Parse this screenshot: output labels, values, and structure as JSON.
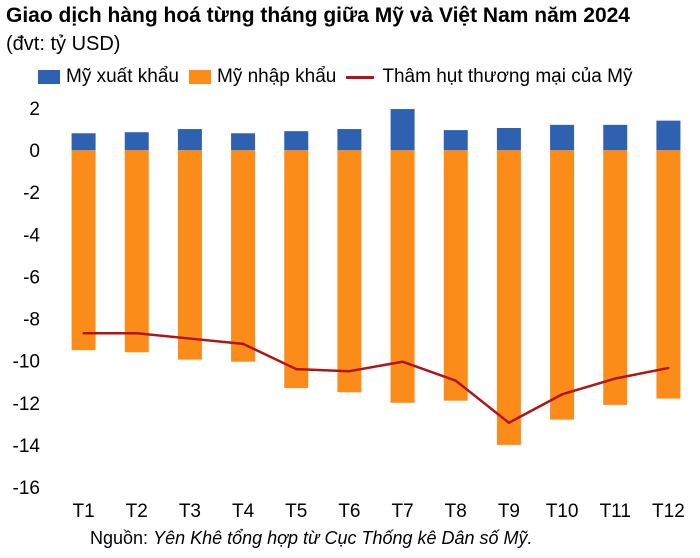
{
  "title": "Giao dịch hàng hoá từng tháng giữa Mỹ và Việt Nam năm 2024",
  "subtitle": "(đvt: tỷ USD)",
  "source": {
    "prefix": "Nguồn:",
    "text": "Yên Khê tổng hợp từ Cục Thống kê Dân số Mỹ."
  },
  "colors": {
    "export": "#2e62b0",
    "import": "#fb8c1a",
    "deficit": "#b01515",
    "grid": "#d9d9d9"
  },
  "chart_data": {
    "type": "bar",
    "categories": [
      "T1",
      "T2",
      "T3",
      "T4",
      "T5",
      "T6",
      "T7",
      "T8",
      "T9",
      "T10",
      "T11",
      "T12"
    ],
    "series": [
      {
        "name": "Mỹ xuất khẩu",
        "type": "bar",
        "values": [
          0.8,
          0.85,
          1.0,
          0.8,
          0.9,
          1.0,
          1.95,
          0.95,
          1.05,
          1.2,
          1.2,
          1.4
        ]
      },
      {
        "name": "Mỹ nhập khẩu",
        "type": "bar",
        "values": [
          -9.5,
          -9.6,
          -9.95,
          -10.05,
          -11.3,
          -11.5,
          -12.0,
          -11.9,
          -14.0,
          -12.8,
          -12.1,
          -11.8
        ]
      },
      {
        "name": "Thâm hụt thương mại của Mỹ",
        "type": "line",
        "values": [
          -8.7,
          -8.7,
          -8.95,
          -9.2,
          -10.4,
          -10.5,
          -10.05,
          -10.95,
          -12.95,
          -11.6,
          -10.85,
          -10.35
        ]
      }
    ],
    "ylim": [
      -16,
      2
    ],
    "yticks": [
      2,
      0,
      -2,
      -4,
      -6,
      -8,
      -10,
      -12,
      -14,
      -16
    ],
    "grid": false,
    "legend_position": "top"
  }
}
